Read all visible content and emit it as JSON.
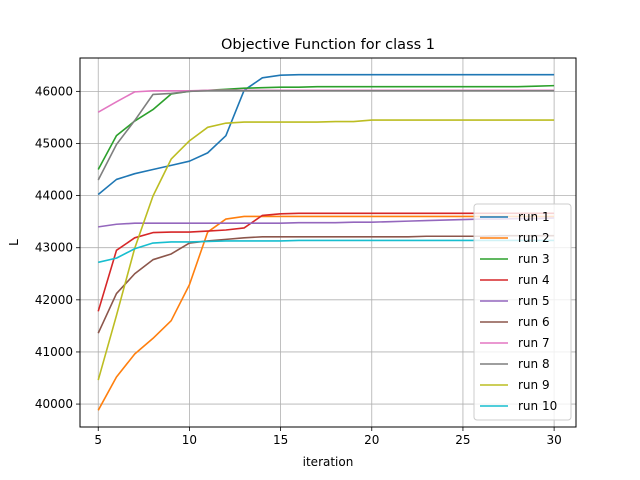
{
  "chart_data": {
    "type": "line",
    "title": "Objective Function for class 1",
    "xlabel": "iteration",
    "ylabel": "L",
    "xlim": [
      4,
      31.2
    ],
    "ylim": [
      39560,
      46640
    ],
    "xticks": [
      5,
      10,
      15,
      20,
      25,
      30
    ],
    "yticks": [
      40000,
      41000,
      42000,
      43000,
      44000,
      45000,
      46000
    ],
    "grid": true,
    "legend_position": "right",
    "x": [
      5,
      6,
      7,
      8,
      9,
      10,
      11,
      12,
      13,
      14,
      15,
      16,
      17,
      18,
      19,
      20,
      21,
      22,
      23,
      24,
      25,
      26,
      27,
      28,
      29,
      30
    ],
    "series": [
      {
        "name": "run 1",
        "color": "#1f77b4",
        "values": [
          44020,
          44310,
          44420,
          44500,
          44580,
          44660,
          44820,
          45150,
          46020,
          46260,
          46310,
          46320,
          46320,
          46320,
          46320,
          46320,
          46320,
          46320,
          46320,
          46320,
          46320,
          46320,
          46320,
          46320,
          46320,
          46320
        ]
      },
      {
        "name": "run 2",
        "color": "#ff7f0e",
        "values": [
          39880,
          40520,
          40960,
          41260,
          41600,
          42290,
          43300,
          43550,
          43600,
          43600,
          43600,
          43600,
          43600,
          43600,
          43600,
          43600,
          43600,
          43600,
          43600,
          43600,
          43600,
          43600,
          43600,
          43600,
          43600,
          43600
        ]
      },
      {
        "name": "run 3",
        "color": "#2ca02c",
        "values": [
          44500,
          45150,
          45430,
          45650,
          45950,
          46000,
          46020,
          46040,
          46060,
          46070,
          46080,
          46080,
          46090,
          46090,
          46090,
          46090,
          46090,
          46090,
          46090,
          46090,
          46090,
          46090,
          46090,
          46090,
          46100,
          46110
        ]
      },
      {
        "name": "run 4",
        "color": "#d62728",
        "values": [
          41780,
          42950,
          43190,
          43290,
          43300,
          43300,
          43320,
          43340,
          43380,
          43620,
          43650,
          43660,
          43660,
          43660,
          43660,
          43660,
          43660,
          43660,
          43660,
          43660,
          43660,
          43660,
          43660,
          43660,
          43660,
          43660
        ]
      },
      {
        "name": "run 5",
        "color": "#9467bd",
        "values": [
          43400,
          43450,
          43470,
          43470,
          43470,
          43470,
          43470,
          43470,
          43470,
          43470,
          43470,
          43480,
          43480,
          43480,
          43490,
          43490,
          43500,
          43510,
          43520,
          43530,
          43540,
          43550,
          43550,
          43560,
          43560,
          43570
        ]
      },
      {
        "name": "run 6",
        "color": "#8c564b",
        "values": [
          41360,
          42120,
          42500,
          42770,
          42880,
          43090,
          43130,
          43160,
          43190,
          43210,
          43210,
          43210,
          43210,
          43210,
          43210,
          43210,
          43210,
          43210,
          43220,
          43220,
          43220,
          43220,
          43230,
          43230,
          43230,
          43230
        ]
      },
      {
        "name": "run 7",
        "color": "#e377c2",
        "values": [
          45600,
          45800,
          45990,
          46010,
          46010,
          46010,
          46020,
          46020,
          46020,
          46020,
          46020,
          46020,
          46020,
          46020,
          46020,
          46020,
          46020,
          46020,
          46020,
          46020,
          46020,
          46020,
          46020,
          46020,
          46020,
          46020
        ]
      },
      {
        "name": "run 8",
        "color": "#7f7f7f",
        "values": [
          44300,
          44980,
          45440,
          45940,
          45960,
          46000,
          46010,
          46010,
          46010,
          46010,
          46010,
          46010,
          46010,
          46010,
          46010,
          46010,
          46010,
          46010,
          46010,
          46010,
          46010,
          46010,
          46010,
          46010,
          46010,
          46010
        ]
      },
      {
        "name": "run 9",
        "color": "#bcbd22",
        "values": [
          40460,
          41700,
          42990,
          43990,
          44700,
          45050,
          45310,
          45390,
          45410,
          45410,
          45410,
          45410,
          45410,
          45420,
          45420,
          45450,
          45450,
          45450,
          45450,
          45450,
          45450,
          45450,
          45450,
          45450,
          45450,
          45450
        ]
      },
      {
        "name": "run 10",
        "color": "#17becf",
        "values": [
          42720,
          42800,
          42980,
          43090,
          43110,
          43110,
          43120,
          43130,
          43130,
          43130,
          43130,
          43140,
          43140,
          43140,
          43140,
          43140,
          43140,
          43140,
          43140,
          43140,
          43140,
          43140,
          43140,
          43140,
          43140,
          43140
        ]
      }
    ]
  }
}
